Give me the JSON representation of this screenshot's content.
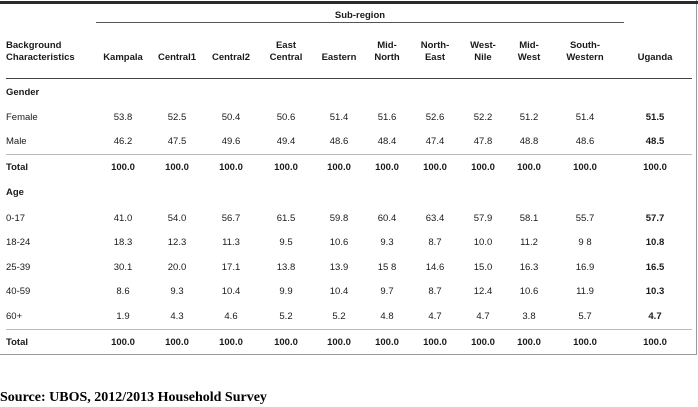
{
  "header": {
    "group_label": "Sub-region",
    "first_col": [
      "Background",
      "Characteristics"
    ],
    "columns": [
      [
        "Kampala"
      ],
      [
        "Central1"
      ],
      [
        "Central2"
      ],
      [
        "East",
        "Central"
      ],
      [
        "Eastern"
      ],
      [
        "Mid-",
        "North"
      ],
      [
        "North-",
        "East"
      ],
      [
        "West-",
        "Nile"
      ],
      [
        "Mid-",
        "West"
      ],
      [
        "South-",
        "Western"
      ],
      [
        "Uganda"
      ]
    ]
  },
  "sections": [
    {
      "title": "Gender",
      "rows": [
        {
          "label": "Female",
          "values": [
            "53.8",
            "52.5",
            "50.4",
            "50.6",
            "51.4",
            "51.6",
            "52.6",
            "52.2",
            "51.2",
            "51.4",
            "51.5"
          ],
          "total": false
        },
        {
          "label": "Male",
          "values": [
            "46.2",
            "47.5",
            "49.6",
            "49.4",
            "48.6",
            "48.4",
            "47.4",
            "47.8",
            "48.8",
            "48.6",
            "48.5"
          ],
          "total": false
        },
        {
          "label": "Total",
          "values": [
            "100.0",
            "100.0",
            "100.0",
            "100.0",
            "100.0",
            "100.0",
            "100.0",
            "100.0",
            "100.0",
            "100.0",
            "100.0"
          ],
          "total": true
        }
      ]
    },
    {
      "title": "Age",
      "rows": [
        {
          "label": "0-17",
          "values": [
            "41.0",
            "54.0",
            "56.7",
            "61.5",
            "59.8",
            "60.4",
            "63.4",
            "57.9",
            "58.1",
            "55.7",
            "57.7"
          ],
          "total": false
        },
        {
          "label": "18-24",
          "values": [
            "18.3",
            "12.3",
            "11.3",
            "9.5",
            "10.6",
            "9.3",
            "8.7",
            "10.0",
            "11.2",
            "9 8",
            "10.8"
          ],
          "total": false
        },
        {
          "label": "25-39",
          "values": [
            "30.1",
            "20.0",
            "17.1",
            "13.8",
            "13.9",
            "15 8",
            "14.6",
            "15.0",
            "16.3",
            "16.9",
            "16.5"
          ],
          "total": false
        },
        {
          "label": "40-59",
          "values": [
            "8.6",
            "9.3",
            "10.4",
            "9.9",
            "10.4",
            "9.7",
            "8.7",
            "12.4",
            "10.6",
            "11.9",
            "10.3"
          ],
          "total": false
        },
        {
          "label": "60+",
          "values": [
            "1.9",
            "4.3",
            "4.6",
            "5.2",
            "5.2",
            "4.8",
            "4.7",
            "4.7",
            "3.8",
            "5.7",
            "4.7"
          ],
          "total": false
        },
        {
          "label": "Total",
          "values": [
            "100.0",
            "100.0",
            "100.0",
            "100.0",
            "100.0",
            "100.0",
            "100.0",
            "100.0",
            "100.0",
            "100.0",
            "100.0"
          ],
          "total": true
        }
      ]
    }
  ],
  "source": "Source: UBOS, 2012/2013 Household Survey"
}
